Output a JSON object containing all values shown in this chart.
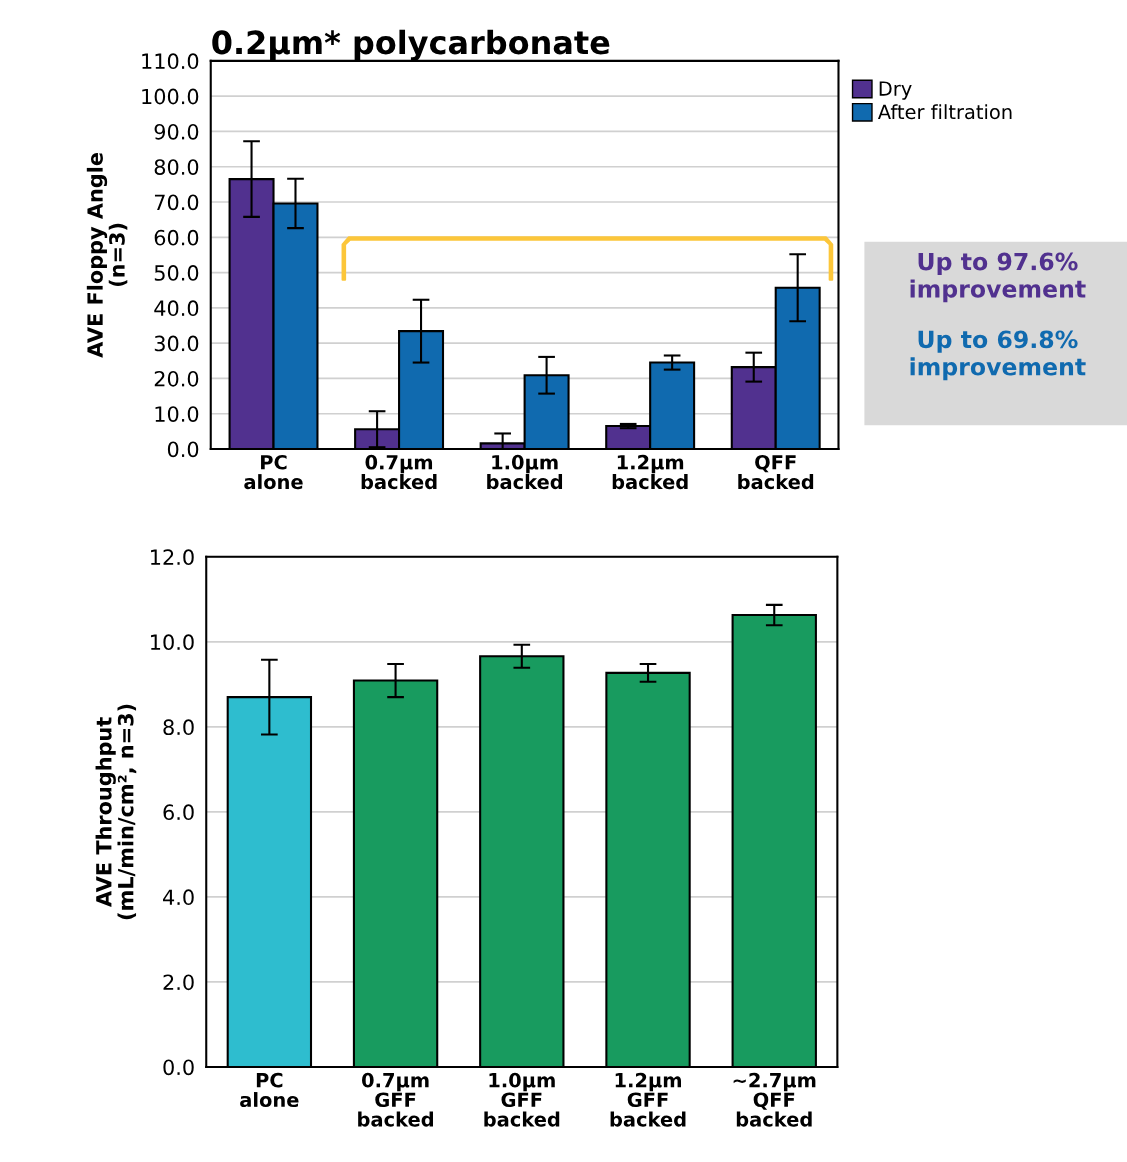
{
  "chart_data": [
    {
      "type": "bar",
      "title": "0.2µm* polycarbonate",
      "ylabel": "AVE Floppy Angle\n(n=3)",
      "categories": [
        "PC\nalone",
        "0.7µm\nbacked",
        "1.0µm\nbacked",
        "1.2µm\nbacked",
        "QFF\nbacked"
      ],
      "series": [
        {
          "name": "Dry",
          "color": "#51318f",
          "values": [
            76.5,
            5.6,
            1.6,
            6.5,
            23.2
          ],
          "errors": [
            10.7,
            5.1,
            2.8,
            0.6,
            4.1
          ]
        },
        {
          "name": "After filtration",
          "color": "#106aaf",
          "values": [
            69.6,
            33.4,
            20.9,
            24.5,
            45.7
          ],
          "errors": [
            7.0,
            8.9,
            5.2,
            2.0,
            9.5
          ]
        }
      ],
      "ylim": [
        0,
        110
      ],
      "yticks": [
        {
          "value": 0,
          "label": "0.0"
        },
        {
          "value": 10,
          "label": "10.0"
        },
        {
          "value": 20,
          "label": "20.0"
        },
        {
          "value": 30,
          "label": "30.0"
        },
        {
          "value": 40,
          "label": "40.0"
        },
        {
          "value": 50,
          "label": "50.0"
        },
        {
          "value": 60,
          "label": "60.0"
        },
        {
          "value": 70,
          "label": "70.0"
        },
        {
          "value": 80,
          "label": "80.0"
        },
        {
          "value": 90,
          "label": "90.0"
        },
        {
          "value": 100,
          "label": "100.0"
        },
        {
          "value": 110,
          "label": "110.0"
        }
      ],
      "grid": "y",
      "legend": "right",
      "annotations": [
        "Up to 97.6% improvement",
        "Up to 69.8% improvement"
      ]
    },
    {
      "type": "bar",
      "ylabel": "AVE Throughput\n(mL/min/cm², n=3)",
      "categories": [
        "PC\nalone",
        "0.7µm\nGFF\nbacked",
        "1.0µm\nGFF\nbacked",
        "1.2µm\nGFF\nbacked",
        "~2.7µm\nQFF\nbacked"
      ],
      "values": [
        8.7,
        9.09,
        9.66,
        9.27,
        10.63
      ],
      "errors": [
        0.88,
        0.39,
        0.27,
        0.21,
        0.24
      ],
      "colors": [
        "#2ebdcf",
        "#189b5f",
        "#189b5f",
        "#189b5f",
        "#189b5f"
      ],
      "ylim": [
        0,
        12
      ],
      "yticks": [
        {
          "value": 0,
          "label": "0.0"
        },
        {
          "value": 2,
          "label": "2.0"
        },
        {
          "value": 4,
          "label": "4.0"
        },
        {
          "value": 6,
          "label": "6.0"
        },
        {
          "value": 8,
          "label": "8.0"
        },
        {
          "value": 10,
          "label": "10.0"
        },
        {
          "value": 12,
          "label": "12.0"
        }
      ],
      "grid": "y"
    }
  ]
}
